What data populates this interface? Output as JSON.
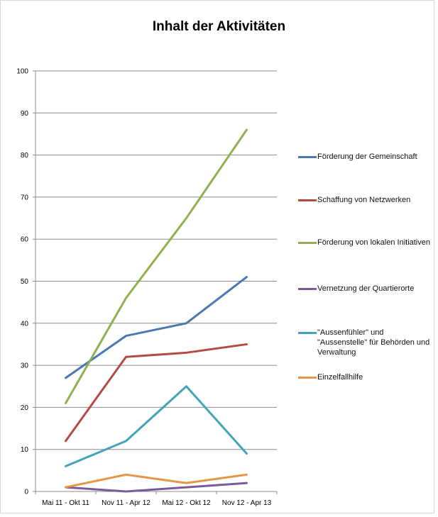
{
  "chart_data": {
    "type": "line",
    "title": "Inhalt der Aktivitäten",
    "categories": [
      "Mai 11 - Okt 11",
      "Nov 11 - Apr 12",
      "Mai 12 - Okt 12",
      "Nov 12 - Apr 13"
    ],
    "ylim": [
      0,
      100
    ],
    "yticks": [
      "0",
      "10",
      "20",
      "30",
      "40",
      "50",
      "60",
      "70",
      "80",
      "90",
      "100"
    ],
    "grid": true,
    "legend_position": "right",
    "series": [
      {
        "name": "Förderung der Gemeinschaft",
        "color": "#4a78b2",
        "values": [
          27,
          37,
          40,
          51
        ]
      },
      {
        "name": "Schaffung von Netzwerken",
        "color": "#b54a45",
        "values": [
          12,
          32,
          33,
          35
        ]
      },
      {
        "name": "Förderung von lokalen Initiativen",
        "color": "#8fb050",
        "values": [
          21,
          46,
          65,
          86
        ]
      },
      {
        "name": "Vernetzung der Quartierorte",
        "color": "#7a5a9a",
        "values": [
          1,
          0,
          1,
          2
        ]
      },
      {
        "name": "\"Aussenfühler\" und \"Aussenstelle\" für Behörden und Verwaltung",
        "color": "#45a3b8",
        "values": [
          6,
          12,
          25,
          9
        ]
      },
      {
        "name": "Einzelfallhilfe",
        "color": "#e69646",
        "values": [
          1,
          4,
          2,
          4
        ]
      }
    ]
  }
}
